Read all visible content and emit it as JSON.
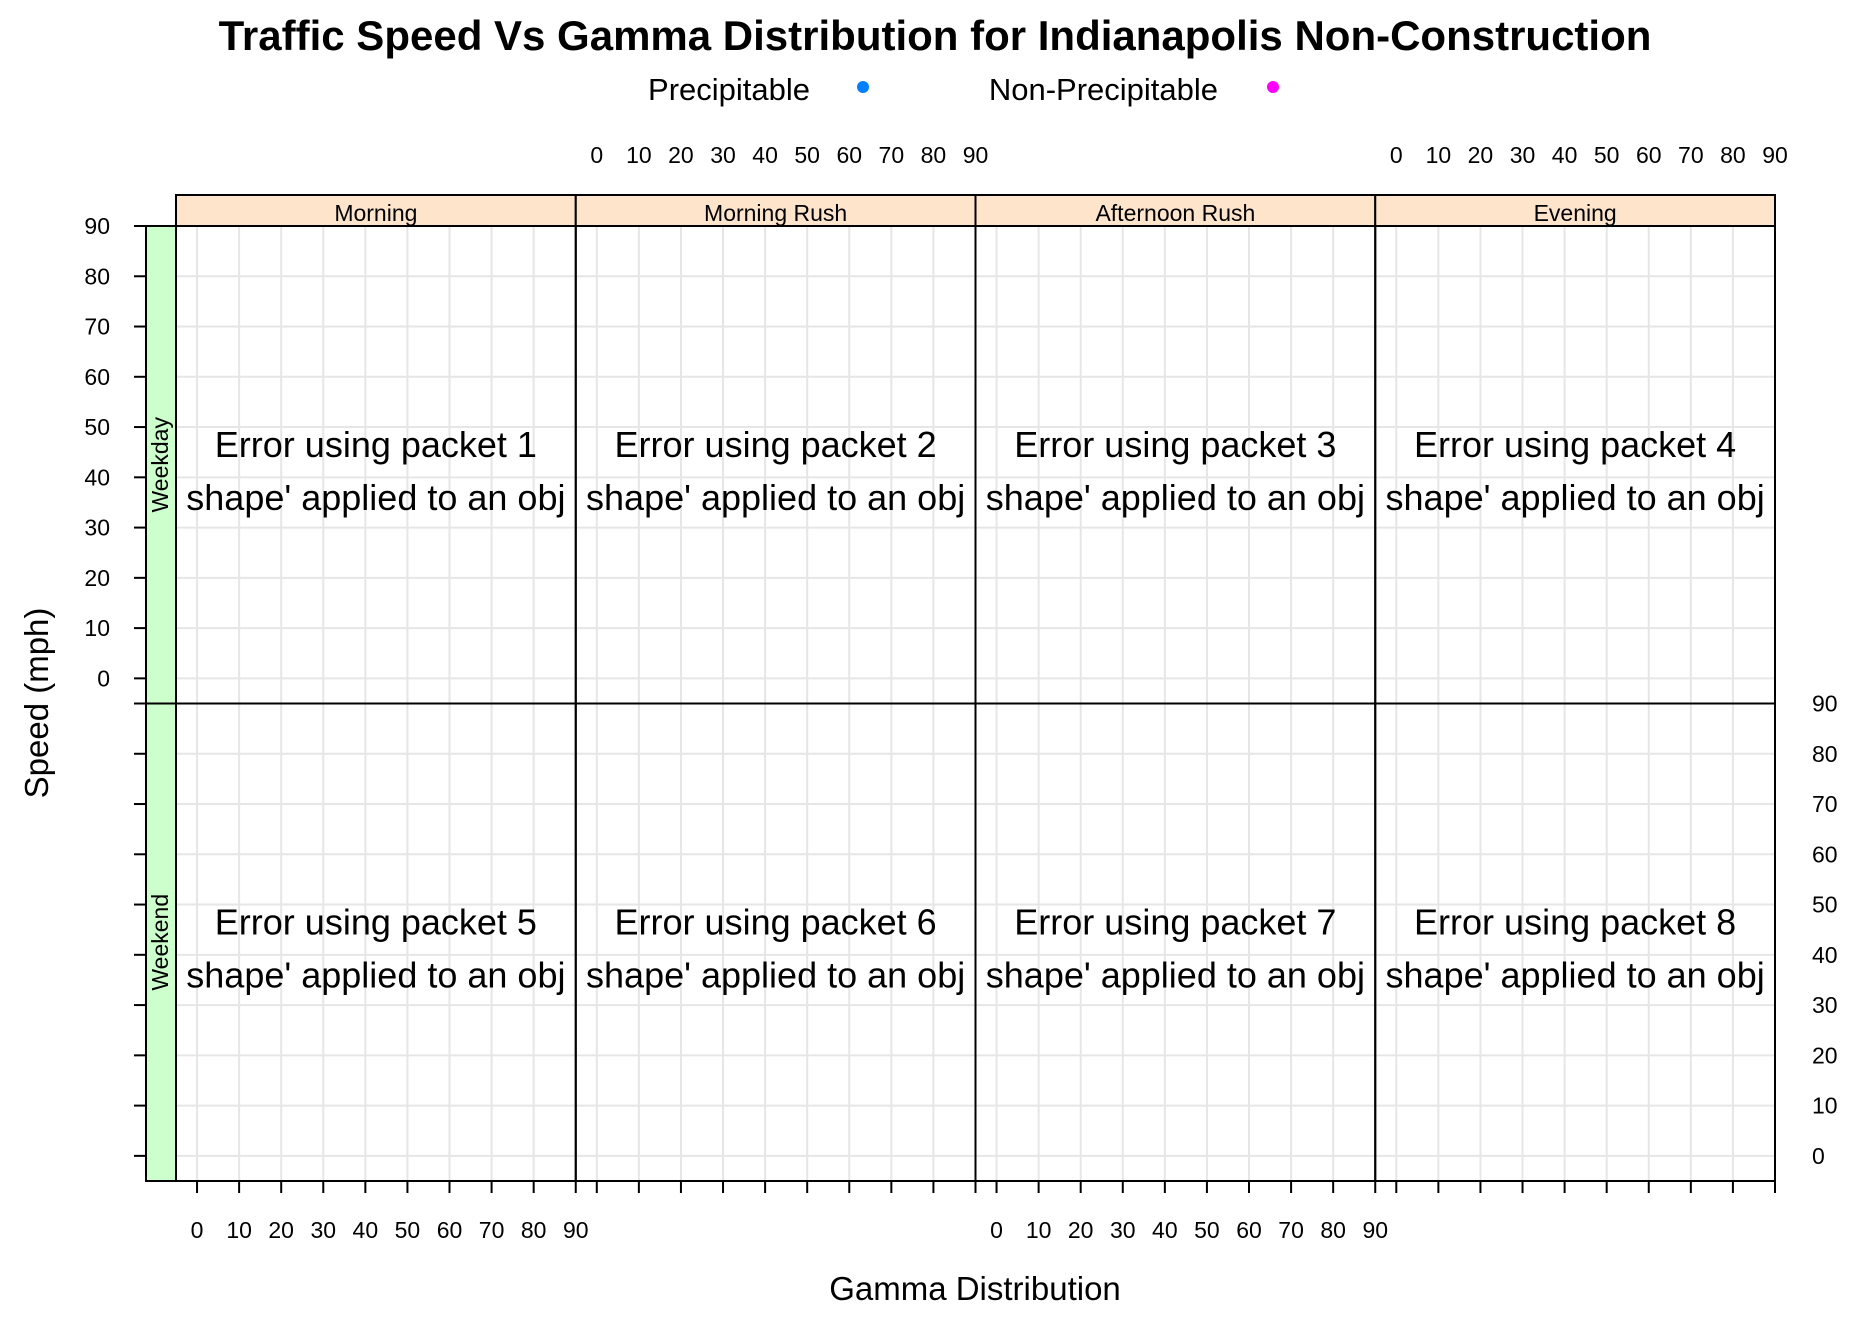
{
  "chart_data": {
    "type": "scatter",
    "title": "Traffic Speed Vs Gamma Distribution for Indianapolis Non-Construction",
    "xlabel": "Gamma Distribution",
    "ylabel": "Speed (mph)",
    "xlim": [
      -5,
      90
    ],
    "ylim": [
      -5,
      90
    ],
    "x_ticks": [
      "0",
      "10",
      "20",
      "30",
      "40",
      "50",
      "60",
      "70",
      "80",
      "90"
    ],
    "y_ticks": [
      "0",
      "10",
      "20",
      "30",
      "40",
      "50",
      "60",
      "70",
      "80",
      "90"
    ],
    "grid": true,
    "legend_position": "top",
    "legend": [
      {
        "name": "Precipitable",
        "color": "#0080ff"
      },
      {
        "name": "Non-Precipitable",
        "color": "#ff00ff"
      }
    ],
    "columns": [
      "Morning",
      "Morning Rush",
      "Afternoon Rush",
      "Evening"
    ],
    "rows": [
      "Weekend",
      "Weekday"
    ],
    "panels": [
      {
        "row": 0,
        "col": 0,
        "message1": "Error using packet 5",
        "message2": "shape' applied to an obj"
      },
      {
        "row": 0,
        "col": 1,
        "message1": "Error using packet 6",
        "message2": "shape' applied to an obj"
      },
      {
        "row": 0,
        "col": 2,
        "message1": "Error using packet 7",
        "message2": "shape' applied to an obj"
      },
      {
        "row": 0,
        "col": 3,
        "message1": "Error using packet 8",
        "message2": "shape' applied to an obj"
      },
      {
        "row": 1,
        "col": 0,
        "message1": "Error using packet 1",
        "message2": "shape' applied to an obj"
      },
      {
        "row": 1,
        "col": 1,
        "message1": "Error using packet 2",
        "message2": "shape' applied to an obj"
      },
      {
        "row": 1,
        "col": 2,
        "message1": "Error using packet 3",
        "message2": "shape' applied to an obj"
      },
      {
        "row": 1,
        "col": 3,
        "message1": "Error using packet 4",
        "message2": "shape' applied to an obj"
      }
    ],
    "series": [
      {
        "name": "Precipitable",
        "values": []
      },
      {
        "name": "Non-Precipitable",
        "values": []
      }
    ]
  },
  "colors": {
    "column_strip": "#ffe4cc",
    "row_strip": "#ccffcc",
    "grid": "#e6e6e6",
    "frame": "#000000"
  }
}
